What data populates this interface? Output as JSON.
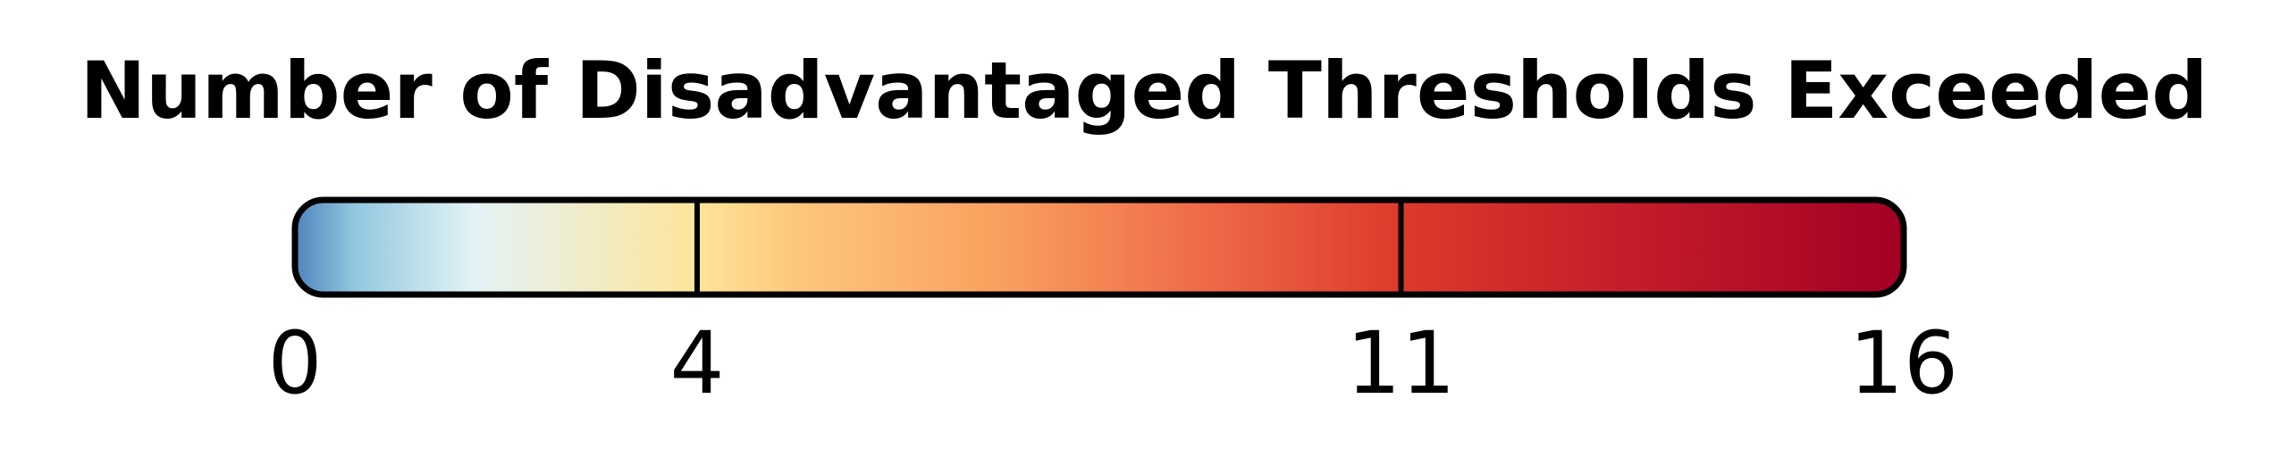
{
  "chart_data": {
    "type": "colorbar",
    "title": "Number of Disadvantaged Thresholds Exceeded",
    "range": [
      0,
      16
    ],
    "ticks": [
      0,
      4,
      11,
      16
    ],
    "tick_labels": [
      "0",
      "4",
      "11",
      "16"
    ],
    "dividers": [
      4,
      11
    ],
    "gradient_stops": [
      {
        "value": 0,
        "color": "#4f84bd"
      },
      {
        "value": 0.6,
        "color": "#93c8e0"
      },
      {
        "value": 1.8,
        "color": "#e4f3f6"
      },
      {
        "value": 4,
        "color": "#fde59a"
      },
      {
        "value": 5,
        "color": "#fdc77b"
      },
      {
        "value": 7,
        "color": "#f9a05f"
      },
      {
        "value": 9,
        "color": "#ef6b48"
      },
      {
        "value": 11,
        "color": "#dd3a2b"
      },
      {
        "value": 13,
        "color": "#c7202a"
      },
      {
        "value": 16,
        "color": "#a20025"
      }
    ],
    "outline_color": "#000000"
  }
}
